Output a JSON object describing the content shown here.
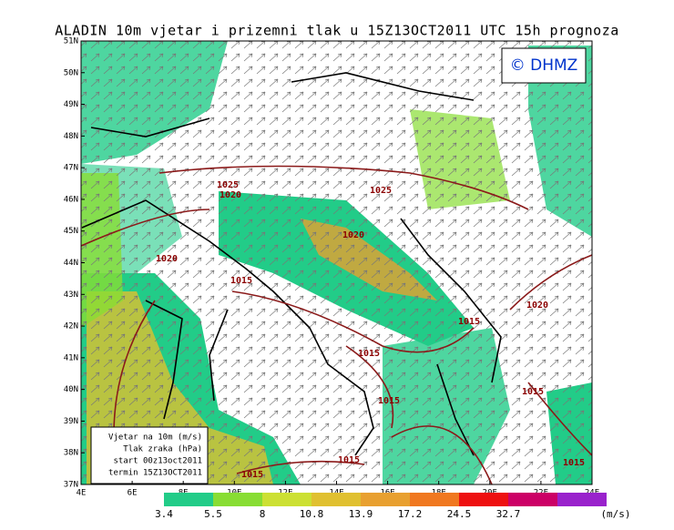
{
  "title": "ALADIN 10m vjetar i prizemni tlak u 15Z13OCT2011 UTC 15h prognoza",
  "logo": "© DHMZ",
  "axes": {
    "latitude": [
      "37N",
      "38N",
      "39N",
      "40N",
      "41N",
      "42N",
      "43N",
      "44N",
      "45N",
      "46N",
      "47N",
      "48N",
      "49N",
      "50N",
      "51N"
    ],
    "longitude": [
      "4E",
      "6E",
      "8E",
      "10E",
      "12E",
      "14E",
      "16E",
      "18E",
      "20E",
      "22E",
      "24E"
    ]
  },
  "isobar_labels": [
    "1025",
    "1020",
    "1025",
    "1020",
    "1020",
    "1015",
    "1015",
    "1020",
    "1015",
    "1015",
    "1015",
    "1015",
    "1015",
    "1015"
  ],
  "legend": {
    "bins": [
      {
        "label": "3.4",
        "color": "#22cc88"
      },
      {
        "label": "5.5",
        "color": "#88dd33"
      },
      {
        "label": "8",
        "color": "#cce033"
      },
      {
        "label": "10.8",
        "color": "#e0c030"
      },
      {
        "label": "13.9",
        "color": "#e8a030"
      },
      {
        "label": "17.2",
        "color": "#f07820"
      },
      {
        "label": "24.5",
        "color": "#ee1010"
      },
      {
        "label": "32.7",
        "color": "#cc0066"
      }
    ],
    "end_color": "#9922cc",
    "unit": "(m/s)"
  },
  "info_box": [
    "Vjetar na 10m (m/s)",
    "Tlak zraka (hPa)",
    "start 00z13oct2011",
    "termin 15Z13OCT2011"
  ]
}
